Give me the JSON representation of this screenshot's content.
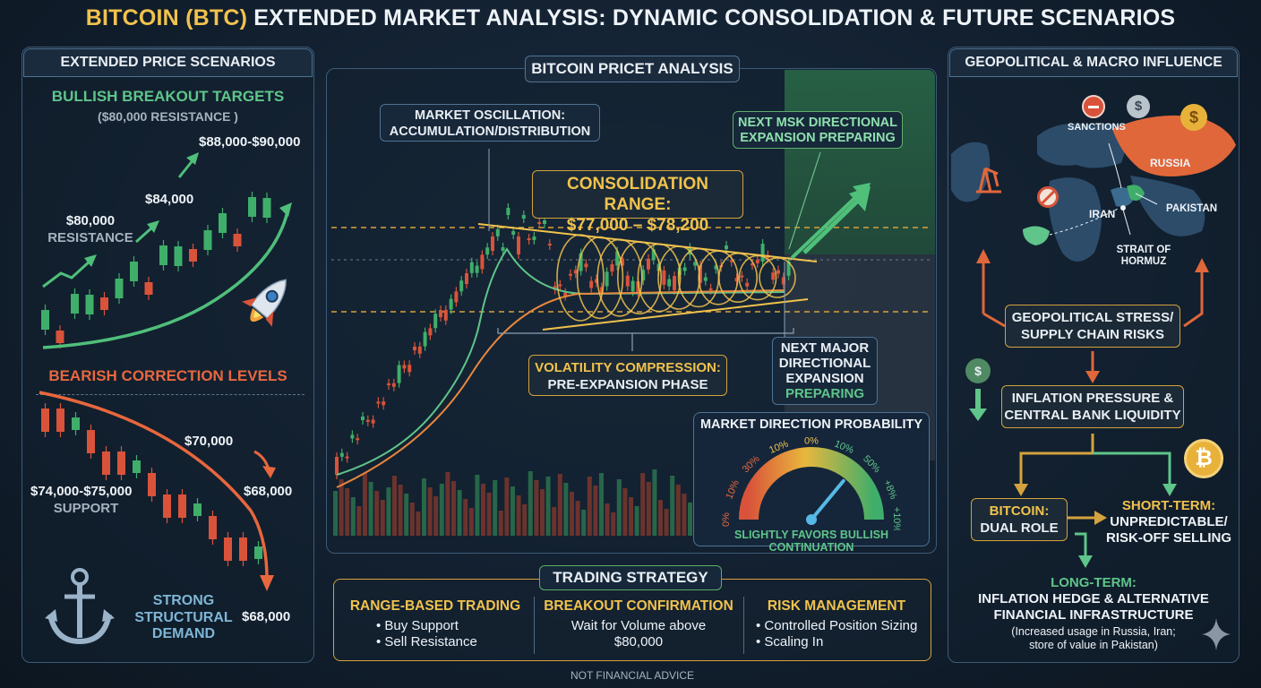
{
  "title": {
    "part1": "BITCOIN (BTC)",
    "part2": " EXTENDED MARKET ANALYSIS: DYNAMIC CONSOLIDATION & FUTURE SCENARIOS"
  },
  "left": {
    "header": "EXTENDED PRICE SCENARIOS",
    "bull_title": "BULLISH BREAKOUT TARGETS",
    "bull_sub": "($80,000 RESISTANCE )",
    "bull_labels": {
      "t1": "$88,000-$90,000",
      "t2": "$84,000",
      "t3": "$80,000",
      "t4": "RESISTANCE"
    },
    "bear_title": "BEARISH CORRECTION LEVELS",
    "bear_labels": {
      "b1": "$70,000",
      "b2": "$68,000",
      "b3": "$74,000-$75,000",
      "b4": "SUPPORT",
      "b5": "$68,000"
    },
    "anchor_text": [
      "STRONG",
      "STRUCTURAL",
      "DEMAND"
    ]
  },
  "center": {
    "header": "BITCOIN PRICET ANALYSIS",
    "osc": [
      "MARKET OSCILLATION:",
      "ACCUMULATION/DISTRIBUTION"
    ],
    "next_top": [
      "NEXT MSK DIRECTIONAL",
      "EXPANSION PREPARING"
    ],
    "range_title": "CONSOLIDATION RANGE:",
    "range_value": "$77,000 – $78,200",
    "vol": [
      "VOLATILITY COMPRESSION:",
      "PRE-EXPANSION PHASE"
    ],
    "next_major": [
      "NEXT MAJOR",
      "DIRECTIONAL",
      "EXPANSION",
      "PREPARING"
    ],
    "gauge": {
      "title": "MARKET DIRECTION PROBABILITY",
      "ticks": [
        "0%",
        "10%",
        "30%",
        "10%",
        "0%",
        "10%",
        "50%",
        "+8%",
        "+10%"
      ],
      "footer": "SLIGHTLY FAVORS BULLISH CONTINUATION",
      "needle_fraction": 0.72
    },
    "colors": {
      "bull": "#3fae6a",
      "bear": "#d9533a",
      "accent": "#f1c24d"
    }
  },
  "strategy": {
    "header": "TRADING STRATEGY",
    "cols": [
      {
        "title": "RANGE-BASED TRADING",
        "items": [
          "• Buy Support",
          "• Sell Resistance"
        ]
      },
      {
        "title": "BREAKOUT CONFIRMATION",
        "items": [
          "Wait for Volume above",
          "$80,000"
        ]
      },
      {
        "title": "RISK MANAGEMENT",
        "items": [
          "• Controlled Position Sizing",
          "• Scaling In"
        ]
      }
    ],
    "disclaimer": "NOT FINANCIAL ADVICE"
  },
  "right": {
    "header": "GEOPOLITICAL & MACRO INFLUENCE",
    "map_labels": {
      "sanctions": "SANCTIONS",
      "russia": "RUSSIA",
      "iran": "IRAN",
      "pakistan": "PAKISTAN",
      "strait1": "STRAIT OF",
      "strait2": "HORMUZ"
    },
    "stress": [
      "GEOPOLITICAL STRESS/",
      "SUPPLY CHAIN RISKS"
    ],
    "inflation": [
      "INFLATION PRESSURE &",
      "CENTRAL BANK LIQUIDITY"
    ],
    "dual": [
      "BITCOIN:",
      "DUAL ROLE"
    ],
    "short": [
      "SHORT-TERM:",
      "UNPREDICTABLE/",
      "RISK-OFF SELLING"
    ],
    "long_title": "LONG-TERM:",
    "long_body": [
      "INFLATION HEDGE & ALTERNATIVE",
      "FINANCIAL INFRASTRUCTURE"
    ],
    "long_note": [
      "(Increased usage in Russia, Iran;",
      "store of value in Pakistan)"
    ]
  }
}
